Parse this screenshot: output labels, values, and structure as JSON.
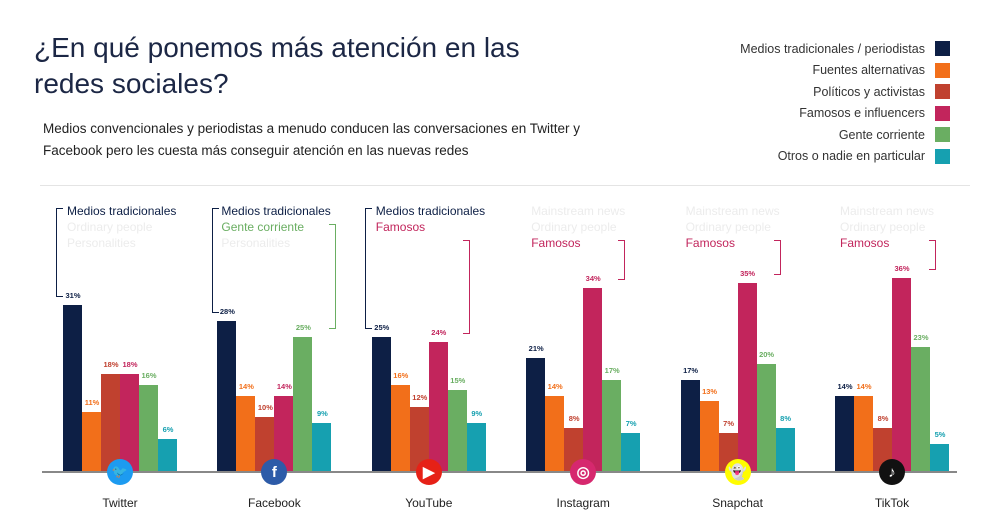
{
  "title": "¿En qué ponemos más atención en las redes sociales?",
  "subtitle": "Medios convencionales y periodistas a menudo conducen las conversaciones en Twitter y Facebook pero les cuesta más conseguir atención en las nuevas redes",
  "chart_data": {
    "type": "bar",
    "categories": [
      "Twitter",
      "Facebook",
      "YouTube",
      "Instagram",
      "Snapchat",
      "TikTok"
    ],
    "unit": "%",
    "ylim": [
      0,
      40
    ],
    "grid": false,
    "legend_placement": "top-right",
    "series": [
      {
        "name": "Medios tradicionales / periodistas",
        "color": "#0d1f45",
        "values": [
          31,
          28,
          25,
          21,
          17,
          14
        ]
      },
      {
        "name": "Fuentes alternativas",
        "color": "#f26f1a",
        "values": [
          11,
          14,
          16,
          14,
          13,
          14
        ]
      },
      {
        "name": "Políticos y activistas",
        "color": "#c0412f",
        "values": [
          18,
          10,
          12,
          8,
          7,
          8
        ]
      },
      {
        "name": "Famosos e influencers",
        "color": "#c2255c",
        "values": [
          18,
          14,
          24,
          34,
          35,
          36
        ]
      },
      {
        "name": "Gente corriente",
        "color": "#6aae62",
        "values": [
          16,
          25,
          15,
          17,
          20,
          23
        ]
      },
      {
        "name": "Otros o nadie en particular",
        "color": "#16a0b0",
        "values": [
          6,
          9,
          9,
          7,
          8,
          5
        ]
      }
    ],
    "annotations": [
      {
        "lines": [
          {
            "text": "Medios tradicionales",
            "color": "#0d1f45"
          },
          {
            "text": "Ordinary people",
            "ghost": true
          },
          {
            "text": "Personalities",
            "ghost": true
          }
        ]
      },
      {
        "lines": [
          {
            "text": "Medios tradicionales",
            "color": "#0d1f45"
          },
          {
            "text": "Gente corriente",
            "color": "#6aae62"
          },
          {
            "text": "Personalities",
            "ghost": true
          }
        ]
      },
      {
        "lines": [
          {
            "text": "Medios tradicionales",
            "color": "#0d1f45"
          },
          {
            "text": "Famosos",
            "color": "#c2255c"
          }
        ]
      },
      {
        "lines": [
          {
            "text": "Mainstream news",
            "ghost": true
          },
          {
            "text": "Ordinary people",
            "ghost": true
          },
          {
            "text": "Famosos",
            "color": "#c2255c"
          }
        ]
      },
      {
        "lines": [
          {
            "text": "Mainstream news",
            "ghost": true
          },
          {
            "text": "Ordinary people",
            "ghost": true
          },
          {
            "text": "Famosos",
            "color": "#c2255c"
          }
        ]
      },
      {
        "lines": [
          {
            "text": "Mainstream news",
            "ghost": true
          },
          {
            "text": "Ordinary people",
            "ghost": true
          },
          {
            "text": "Famosos",
            "color": "#c2255c"
          }
        ]
      }
    ]
  },
  "platforms": [
    {
      "name": "Twitter",
      "icon": "twitter-bird-icon",
      "color": "#1d9bf0",
      "glyph": "🐦"
    },
    {
      "name": "Facebook",
      "icon": "facebook-f-icon",
      "color": "#2d5ba8",
      "glyph": "f"
    },
    {
      "name": "YouTube",
      "icon": "youtube-play-icon",
      "color": "#e62117",
      "glyph": "▶"
    },
    {
      "name": "Instagram",
      "icon": "instagram-camera-icon",
      "color": "#d6286e",
      "glyph": "◎"
    },
    {
      "name": "Snapchat",
      "icon": "snapchat-ghost-icon",
      "color": "#fffc00",
      "glyph": "👻"
    },
    {
      "name": "TikTok",
      "icon": "tiktok-note-icon",
      "color": "#111111",
      "glyph": "♪"
    }
  ]
}
